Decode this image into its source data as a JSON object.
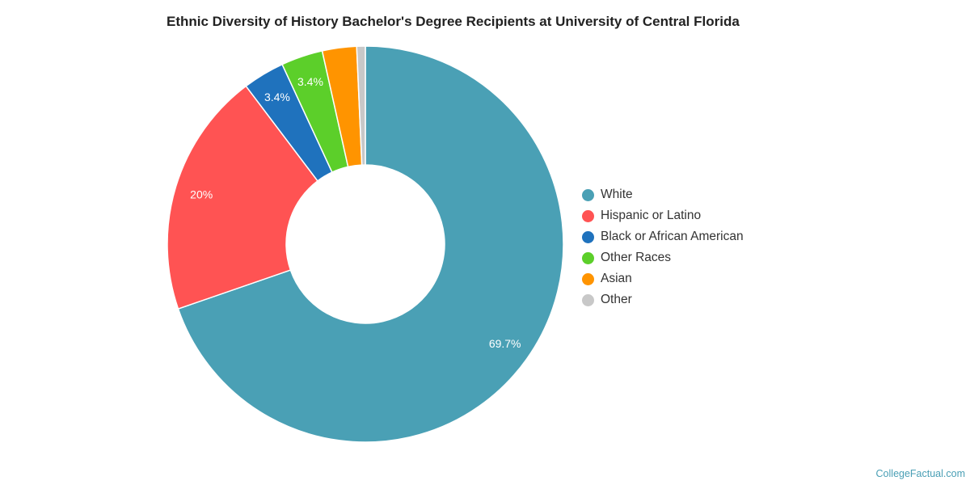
{
  "chart_data": {
    "type": "pie",
    "variant": "donut",
    "title": "Ethnic Diversity of History Bachelor's Degree Recipients at University of Central Florida",
    "categories": [
      "White",
      "Hispanic or Latino",
      "Black or African American",
      "Other Races",
      "Asian",
      "Other"
    ],
    "values": [
      69.7,
      20,
      3.4,
      3.4,
      2.8,
      0.7
    ],
    "data_labels": [
      "69.7%",
      "20%",
      "3.4%",
      "3.4%",
      "",
      ""
    ],
    "colors": [
      "#4aa0b5",
      "#ff5353",
      "#1f72bd",
      "#5ccf2a",
      "#ff9400",
      "#c8c8c8"
    ],
    "legend_position": "right"
  },
  "credit": "CollegeFactual.com"
}
